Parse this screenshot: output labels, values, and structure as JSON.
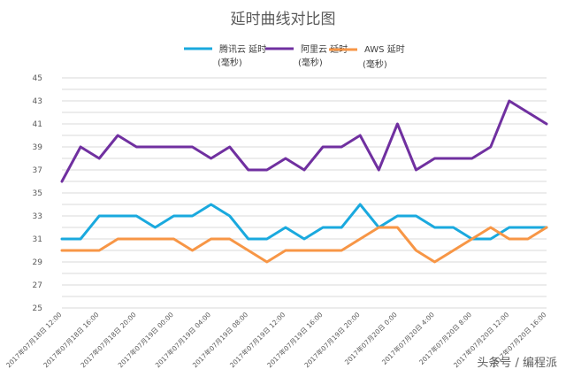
{
  "chart_data": {
    "type": "line",
    "title": "延时曲线对比图",
    "ylim": [
      25,
      45
    ],
    "yticks": [
      25,
      27,
      29,
      31,
      33,
      35,
      37,
      39,
      41,
      43,
      45
    ],
    "grid": true,
    "legend_position": "top",
    "x": [
      "2017年07月18日 12:00",
      "",
      "2017年07月18日 16:00",
      "",
      "2017年07月18日 20:00",
      "",
      "2017年07月19日 00:00",
      "",
      "2017年07月19日 04:00",
      "",
      "2017年07月19日 08:00",
      "",
      "2017年07月19日 12:00",
      "",
      "2017年07月19日 16:00",
      "",
      "2017年07月19日 20:00",
      "",
      "2017年07月20日 0:00",
      "",
      "2017年07月20日 4:00",
      "",
      "2017年07月20日 8:00",
      "",
      "2017年07月20日 12:00",
      "",
      "2017年07月20日 16:00"
    ],
    "series": [
      {
        "name": "腾讯云 延时 (毫秒)",
        "color": "#1AA9DE",
        "values": [
          31,
          31,
          33,
          33,
          33,
          32,
          33,
          33,
          34,
          33,
          31,
          31,
          32,
          31,
          32,
          32,
          34,
          32,
          33,
          33,
          32,
          32,
          31,
          31,
          32,
          32,
          32
        ]
      },
      {
        "name": "阿里云 延时 (毫秒)",
        "color": "#7030A0",
        "values": [
          36,
          39,
          38,
          40,
          39,
          39,
          39,
          39,
          38,
          39,
          37,
          37,
          38,
          37,
          39,
          39,
          40,
          37,
          41,
          37,
          38,
          38,
          38,
          39,
          43,
          42,
          41
        ]
      },
      {
        "name": "AWS 延时 (毫秒)",
        "color": "#F79646",
        "values": [
          30,
          30,
          30,
          31,
          31,
          31,
          31,
          30,
          31,
          31,
          30,
          29,
          30,
          30,
          30,
          30,
          31,
          32,
          32,
          30,
          29,
          30,
          31,
          32,
          31,
          31,
          32
        ]
      }
    ]
  },
  "legend": [
    {
      "line1": "腾讯云 延时",
      "line2": "(毫秒)"
    },
    {
      "line1": "阿里云 延时",
      "line2": "(毫秒)"
    },
    {
      "line1": "AWS 延时",
      "line2": "(毫秒)"
    }
  ],
  "watermark": "头条号 / 编程派"
}
